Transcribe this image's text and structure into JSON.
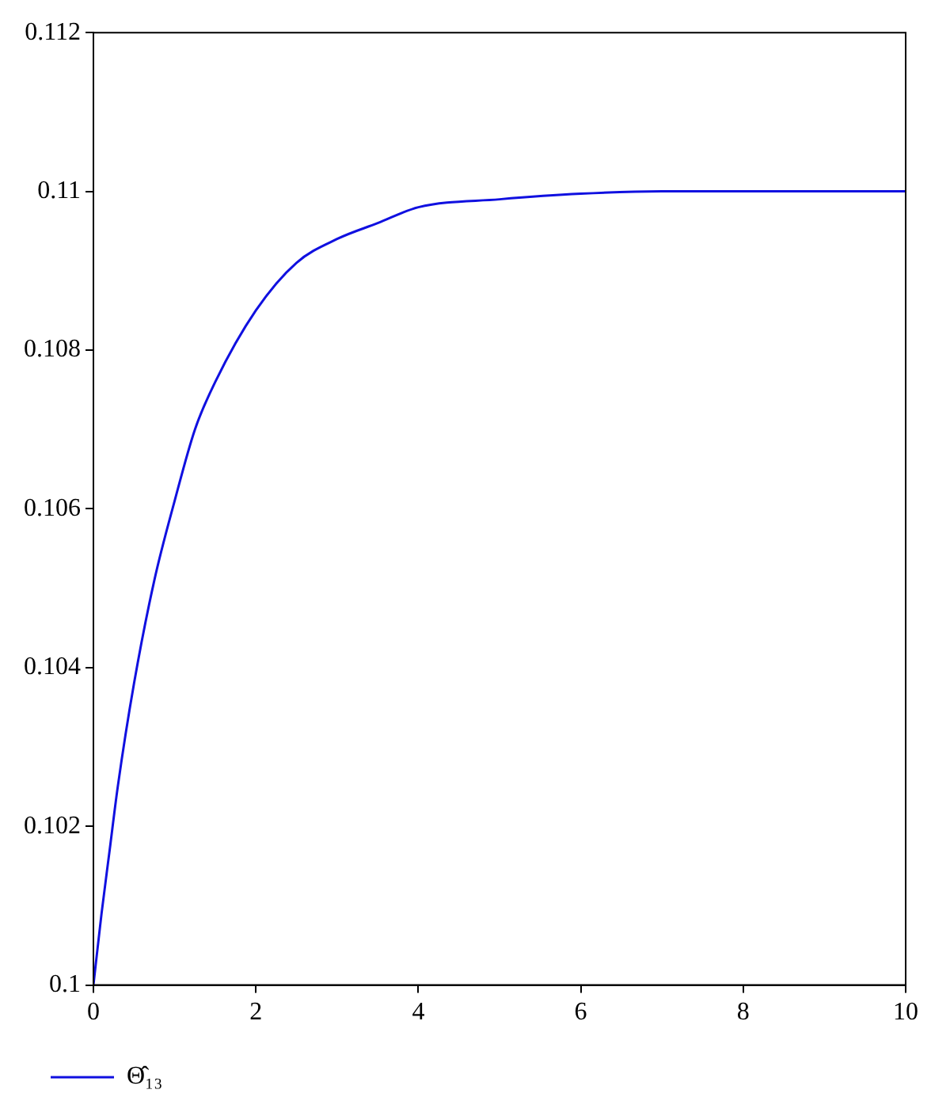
{
  "chart_data": {
    "type": "line",
    "x": [
      0,
      0.1,
      0.2,
      0.3,
      0.5,
      0.75,
      1,
      1.25,
      1.5,
      2,
      2.5,
      3,
      3.5,
      4,
      5,
      6,
      7,
      8,
      9,
      10
    ],
    "series": [
      {
        "name": "Θ̂₁₃",
        "color": "#1010e0",
        "values": [
          0.1,
          0.1009,
          0.1017,
          0.1025,
          0.1038,
          0.1051,
          0.1061,
          0.107,
          0.1076,
          0.1085,
          0.1091,
          0.1094,
          0.1096,
          0.1098,
          0.1099,
          0.10997,
          0.11,
          0.11,
          0.11,
          0.11
        ]
      }
    ],
    "xlim": [
      0,
      10
    ],
    "xticks": [
      0,
      2,
      4,
      6,
      8,
      10
    ],
    "ylim": [
      0.1,
      0.112
    ],
    "yticks": [
      0.1,
      0.102,
      0.104,
      0.106,
      0.108,
      0.11,
      0.112
    ],
    "grid": false,
    "legend": "bottom left",
    "marker": "none",
    "line_style": "solid"
  }
}
